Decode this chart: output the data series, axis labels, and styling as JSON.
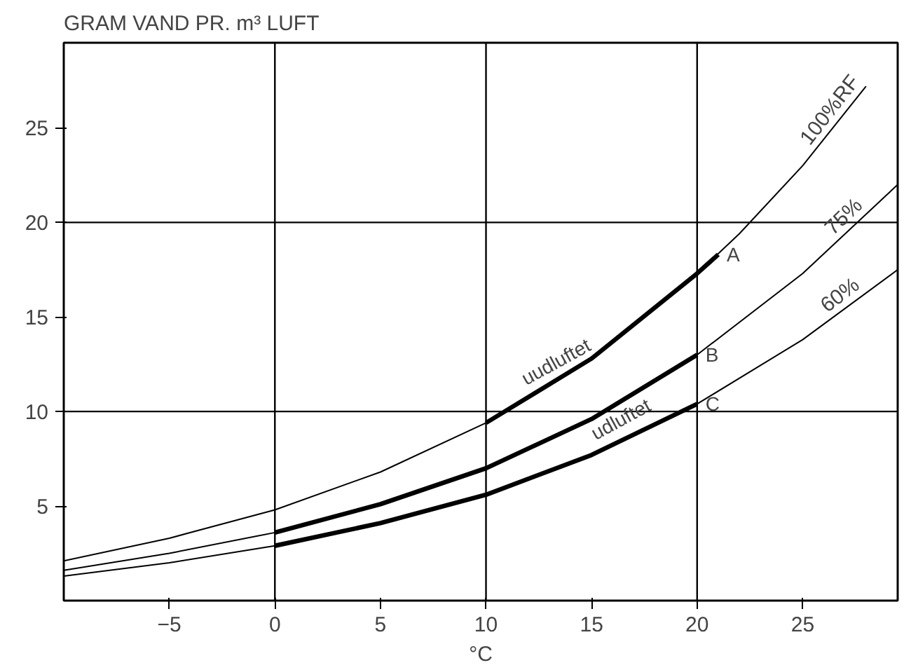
{
  "chart_data": {
    "type": "line",
    "ylabel": "GRAM VAND PR. m³ LUFT",
    "xlabel": "°C",
    "xlim": [
      -10,
      29.5
    ],
    "ylim": [
      0,
      29.5
    ],
    "xticks": [
      -5,
      0,
      5,
      10,
      15,
      20,
      25
    ],
    "yticks": [
      5,
      10,
      15,
      20,
      25
    ],
    "grid": false,
    "marker": "none",
    "line_style": "solid",
    "series": [
      {
        "name": "100%RF",
        "color": "#000000",
        "x": [
          -10,
          -5,
          0,
          5,
          10,
          15,
          20,
          22,
          25,
          28
        ],
        "values": [
          2.1,
          3.3,
          4.8,
          6.8,
          9.4,
          12.8,
          17.3,
          19.4,
          23.0,
          27.2
        ]
      },
      {
        "name": "75%",
        "color": "#000000",
        "x": [
          -10,
          -5,
          0,
          5,
          10,
          15,
          20,
          25,
          29.5
        ],
        "values": [
          1.6,
          2.5,
          3.6,
          5.1,
          7.0,
          9.6,
          13.0,
          17.3,
          22.0
        ]
      },
      {
        "name": "60%",
        "color": "#000000",
        "x": [
          -10,
          -5,
          0,
          5,
          10,
          15,
          20,
          25,
          29.5
        ],
        "values": [
          1.3,
          2.0,
          2.9,
          4.1,
          5.6,
          7.7,
          10.4,
          13.8,
          17.5
        ]
      },
      {
        "color": "#000000",
        "x": [
          10,
          15,
          20,
          21
        ],
        "values": [
          9.4,
          12.8,
          17.3,
          18.3
        ]
      },
      {
        "color": "#000000",
        "x": [
          0,
          5,
          10,
          15,
          20
        ],
        "values": [
          3.6,
          5.1,
          7.0,
          9.6,
          13.0
        ]
      },
      {
        "color": "#000000",
        "x": [
          0,
          5,
          10,
          15,
          20
        ],
        "values": [
          2.9,
          4.1,
          5.6,
          7.7,
          10.4
        ]
      }
    ],
    "annotations": [
      {
        "text": "A",
        "x": 21,
        "y": 18.3
      },
      {
        "text": "B",
        "x": 20,
        "y": 13.0
      },
      {
        "text": "C",
        "x": 20,
        "y": 10.4
      },
      {
        "text": "uudluftet",
        "x": 12,
        "y": 10.8
      },
      {
        "text": "udluftet",
        "x": 15.3,
        "y": 7.9
      }
    ],
    "ref_lines": [
      {
        "axis": "x",
        "value": 0
      },
      {
        "axis": "x",
        "value": 10
      },
      {
        "axis": "x",
        "value": 20
      },
      {
        "axis": "y",
        "value": 10
      },
      {
        "axis": "y",
        "value": 20
      }
    ]
  }
}
